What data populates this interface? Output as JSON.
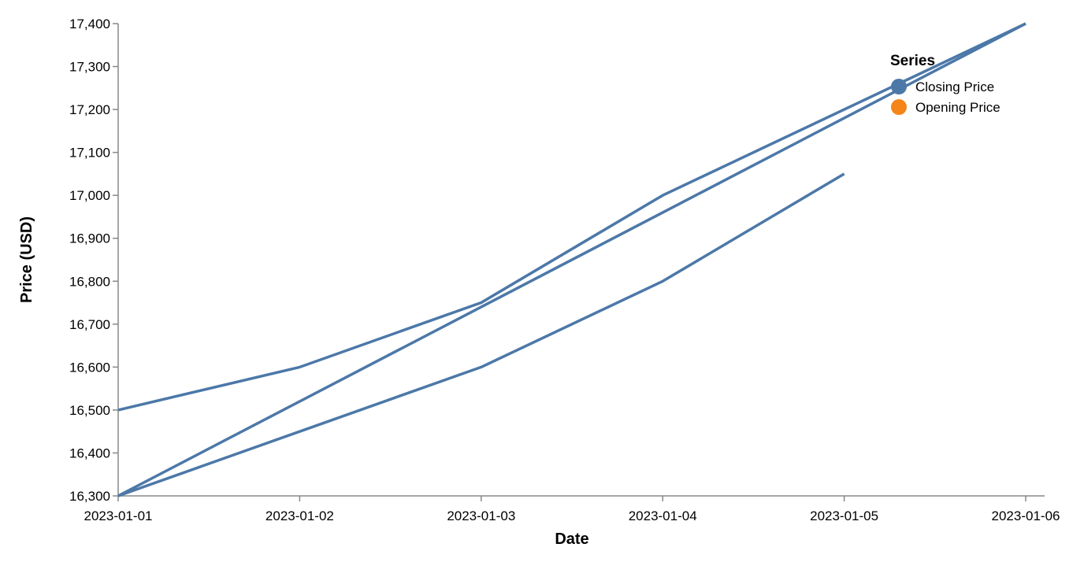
{
  "chart_data": {
    "type": "line",
    "xlabel": "Date",
    "ylabel": "Price (USD)",
    "ylim": [
      16300,
      17400
    ],
    "x_ticks": [
      "2023-01-01",
      "2023-01-02",
      "2023-01-03",
      "2023-01-04",
      "2023-01-05",
      "2023-01-06"
    ],
    "y_ticks": [
      16300,
      16400,
      16500,
      16600,
      16700,
      16800,
      16900,
      17000,
      17100,
      17200,
      17300,
      17400
    ],
    "y_tick_labels": [
      "16,300",
      "16,400",
      "16,500",
      "16,600",
      "16,700",
      "16,800",
      "16,900",
      "17,000",
      "17,100",
      "17,200",
      "17,300",
      "17,400"
    ],
    "grid": false,
    "legend": {
      "title": "Series",
      "placement": "top-right",
      "entries": [
        {
          "label": "Closing Price",
          "color": "#4c78a8"
        },
        {
          "label": "Opening Price",
          "color": "#f58518"
        }
      ]
    },
    "series": [
      {
        "color": "#4c78a8",
        "points": [
          [
            "2023-01-01",
            16500
          ],
          [
            "2023-01-02",
            16600
          ],
          [
            "2023-01-03",
            16750
          ],
          [
            "2023-01-04",
            17000
          ],
          [
            "2023-01-06",
            17400
          ]
        ]
      },
      {
        "color": "#4c78a8",
        "points": [
          [
            "2023-01-01",
            16300
          ],
          [
            "2023-01-06",
            17400
          ]
        ]
      },
      {
        "color": "#4c78a8",
        "points": [
          [
            "2023-01-01",
            16300
          ],
          [
            "2023-01-03",
            16600
          ],
          [
            "2023-01-04",
            16800
          ],
          [
            "2023-01-05",
            17050
          ]
        ]
      }
    ]
  }
}
